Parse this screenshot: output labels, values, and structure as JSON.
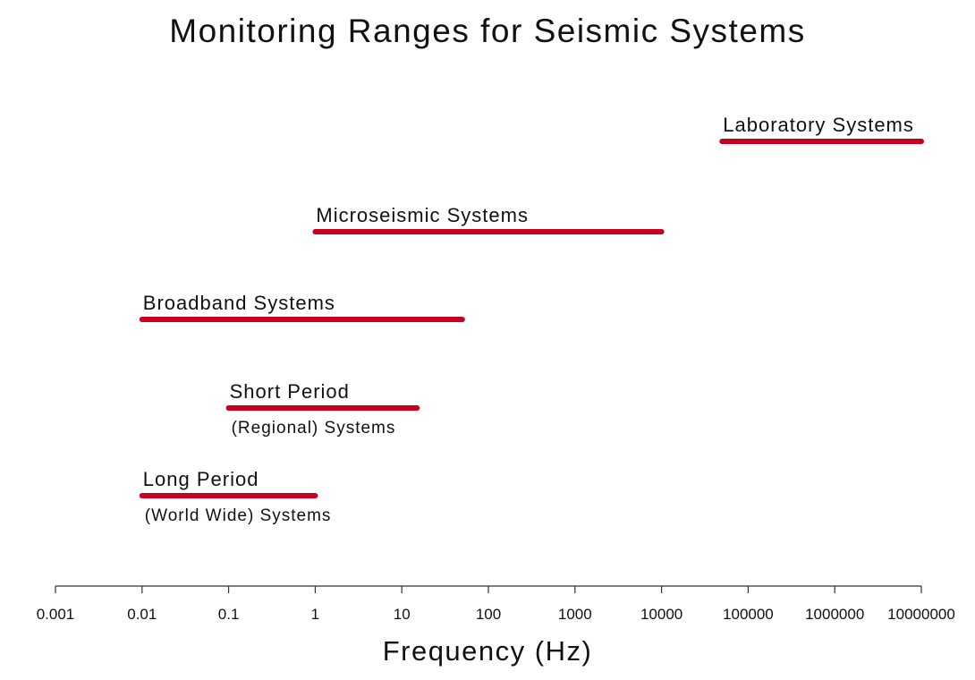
{
  "chart_data": {
    "type": "bar",
    "title": "Monitoring Ranges for Seismic Systems",
    "xlabel": "Frequency (Hz)",
    "ylabel": "",
    "xscale": "log",
    "xlim": [
      0.001,
      10000000
    ],
    "xticks": [
      "0.001",
      "0.01",
      "0.1",
      "1",
      "10",
      "100",
      "1000",
      "10000",
      "100000",
      "1000000",
      "10000000"
    ],
    "bar_color": "#c8001e",
    "grid": false,
    "series": [
      {
        "label": "Laboratory Systems",
        "sublabel": "",
        "range": [
          50000,
          10000000
        ]
      },
      {
        "label": "Microseismic Systems",
        "sublabel": "",
        "range": [
          1,
          10000
        ]
      },
      {
        "label": "Broadband Systems",
        "sublabel": "",
        "range": [
          0.01,
          50
        ]
      },
      {
        "label": "Short Period",
        "sublabel": "(Regional) Systems",
        "range": [
          0.1,
          15
        ]
      },
      {
        "label": "Long Period",
        "sublabel": "(World Wide) Systems",
        "range": [
          0.01,
          1
        ]
      }
    ]
  }
}
